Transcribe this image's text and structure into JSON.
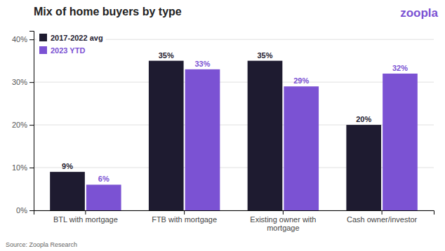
{
  "chart_data": {
    "type": "bar",
    "title": "Mix of home buyers by type",
    "annotations": [
      "zoopla",
      "Source: Zoopla Research"
    ],
    "categories": [
      "BTL with mortgage",
      "FTB with mortgage",
      "Existing owner with\nmortgage",
      "Cash owner/investor"
    ],
    "series": [
      {
        "name": "2017-2022 avg",
        "color": "#1e1b30",
        "values": [
          9,
          35,
          35,
          20
        ],
        "value_labels": [
          "9%",
          "35%",
          "35%",
          "20%"
        ]
      },
      {
        "name": "2023 YTD",
        "color": "#7B52D3",
        "values": [
          6,
          33,
          29,
          32
        ],
        "value_labels": [
          "6%",
          "33%",
          "29%",
          "32%"
        ]
      }
    ],
    "ylim": [
      0,
      42
    ],
    "yticks": [
      {
        "value": 0,
        "label": "0%"
      },
      {
        "value": 10,
        "label": "10%"
      },
      {
        "value": 20,
        "label": "20%"
      },
      {
        "value": 30,
        "label": "30%"
      },
      {
        "value": 40,
        "label": "40%"
      }
    ],
    "grid": true,
    "legend": "upper left",
    "data_labels": true
  }
}
